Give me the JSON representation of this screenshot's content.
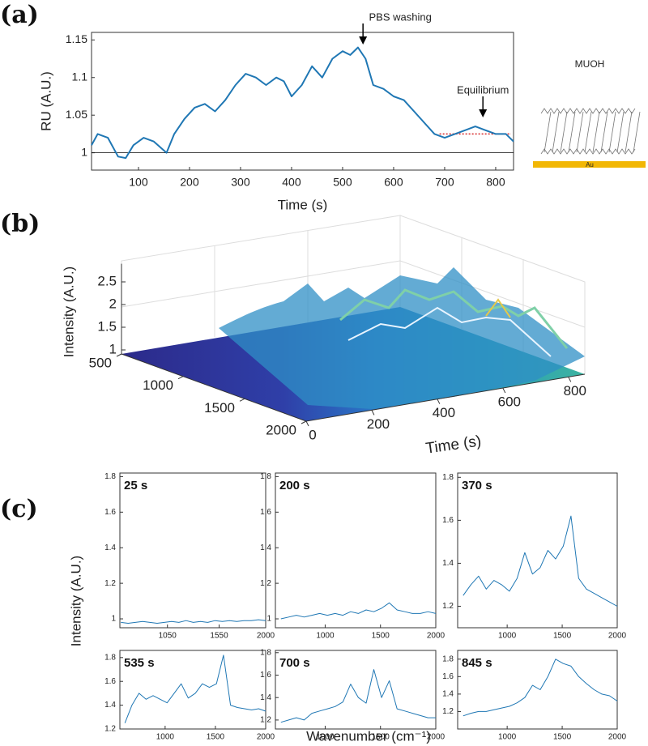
{
  "chart_data": [
    {
      "type": "line",
      "panel_label": "(a)",
      "xlabel": "Time (s)",
      "ylabel": "RU (A.U.)",
      "color": "#1f77b4",
      "x": [
        8,
        20,
        40,
        60,
        75,
        90,
        110,
        130,
        155,
        170,
        190,
        210,
        230,
        250,
        270,
        290,
        310,
        330,
        350,
        370,
        385,
        400,
        420,
        440,
        460,
        480,
        500,
        515,
        530,
        545,
        560,
        580,
        600,
        620,
        640,
        660,
        680,
        700,
        720,
        740,
        760,
        780,
        800,
        820,
        835
      ],
      "values": [
        1.01,
        1.025,
        1.02,
        0.995,
        0.993,
        1.01,
        1.02,
        1.015,
        1.0,
        1.025,
        1.045,
        1.06,
        1.065,
        1.055,
        1.07,
        1.09,
        1.105,
        1.1,
        1.09,
        1.1,
        1.095,
        1.075,
        1.09,
        1.115,
        1.1,
        1.125,
        1.135,
        1.13,
        1.14,
        1.125,
        1.09,
        1.085,
        1.075,
        1.07,
        1.055,
        1.04,
        1.025,
        1.02,
        1.025,
        1.03,
        1.035,
        1.03,
        1.025,
        1.025,
        1.015
      ],
      "xlim": [
        8,
        835
      ],
      "ylim": [
        0.977,
        1.16
      ],
      "xticks": [
        100,
        200,
        300,
        400,
        500,
        600,
        700,
        800
      ],
      "yticks": [
        1,
        1.05,
        1.1,
        1.15
      ],
      "reference_lines": [
        {
          "y": 1,
          "xrange": [
            8,
            835
          ],
          "color": "#000000",
          "style": "solid"
        },
        {
          "y": 1.025,
          "xrange": [
            690,
            830
          ],
          "color": "#d62728",
          "style": "dotted"
        }
      ],
      "annotations": [
        {
          "text": "PBS washing",
          "x": 540
        },
        {
          "text": "Equilibrium",
          "x": 775
        }
      ],
      "schematic": {
        "title": "MUOH",
        "substrate": "Au"
      }
    },
    {
      "type": "surface3d",
      "panel_label": "(b)",
      "zlabel": "Intensity (A.U.)",
      "tlabel": "Time (s)",
      "wlim": [
        500,
        2000
      ],
      "wticks": [
        500,
        1000,
        1500,
        2000
      ],
      "tlim": [
        0,
        850
      ],
      "tticks": [
        0,
        200,
        400,
        600,
        800
      ],
      "zlim": [
        0.9,
        2.9
      ],
      "zticks": [
        1,
        1.5,
        2,
        2.5
      ]
    },
    {
      "type": "multiples",
      "panel_label": "(c)",
      "ylabel": "Intensity (A.U.)",
      "xlabel": "Wavenumber (cm⁻¹)",
      "color": "#1f77b4",
      "panels": [
        {
          "title": "25 s",
          "x": [
            600,
            670,
            740,
            810,
            880,
            950,
            1020,
            1090,
            1160,
            1230,
            1300,
            1370,
            1440,
            1510,
            1580,
            1650,
            1720,
            1790,
            1860,
            1930,
            2000
          ],
          "values": [
            0.98,
            0.975,
            0.98,
            0.985,
            0.98,
            0.975,
            0.98,
            0.985,
            0.98,
            0.99,
            0.98,
            0.985,
            0.98,
            0.99,
            0.985,
            0.99,
            0.985,
            0.99,
            0.99,
            0.995,
            0.99
          ],
          "xlim": [
            590,
            2000
          ],
          "ylim": [
            0.95,
            1.82
          ],
          "xticks": [
            1050,
            1550,
            2000
          ],
          "yticks": [
            1,
            1.2,
            1.4,
            1.6,
            1.8
          ]
        },
        {
          "title": "200 s",
          "x": [
            600,
            670,
            740,
            810,
            880,
            950,
            1020,
            1090,
            1160,
            1230,
            1300,
            1370,
            1440,
            1510,
            1580,
            1650,
            1720,
            1790,
            1860,
            1930,
            2000
          ],
          "values": [
            1.0,
            1.01,
            1.02,
            1.01,
            1.02,
            1.03,
            1.02,
            1.03,
            1.02,
            1.04,
            1.03,
            1.05,
            1.04,
            1.06,
            1.09,
            1.05,
            1.04,
            1.03,
            1.03,
            1.04,
            1.03
          ],
          "xlim": [
            550,
            2000
          ],
          "ylim": [
            0.95,
            1.82
          ],
          "xticks": [
            1000,
            1500,
            2000
          ],
          "yticks": [
            1,
            1.2,
            1.4,
            1.6,
            1.8
          ]
        },
        {
          "title": "370 s",
          "x": [
            600,
            670,
            740,
            810,
            880,
            950,
            1020,
            1090,
            1160,
            1230,
            1300,
            1370,
            1440,
            1510,
            1580,
            1650,
            1720,
            1790,
            1860,
            1930,
            2000
          ],
          "values": [
            1.25,
            1.3,
            1.34,
            1.28,
            1.32,
            1.3,
            1.27,
            1.33,
            1.45,
            1.35,
            1.38,
            1.46,
            1.42,
            1.48,
            1.62,
            1.33,
            1.28,
            1.26,
            1.24,
            1.22,
            1.2
          ],
          "xlim": [
            550,
            2000
          ],
          "ylim": [
            1.1,
            1.82
          ],
          "xticks": [
            1000,
            1500,
            2000
          ],
          "yticks": [
            1.2,
            1.4,
            1.6,
            1.8
          ]
        },
        {
          "title": "535 s",
          "x": [
            600,
            670,
            740,
            810,
            880,
            950,
            1020,
            1090,
            1160,
            1230,
            1300,
            1370,
            1440,
            1510,
            1580,
            1650,
            1720,
            1790,
            1860,
            1930,
            2000
          ],
          "values": [
            1.25,
            1.4,
            1.5,
            1.45,
            1.48,
            1.45,
            1.42,
            1.5,
            1.58,
            1.46,
            1.5,
            1.58,
            1.55,
            1.58,
            1.82,
            1.4,
            1.38,
            1.37,
            1.36,
            1.37,
            1.35
          ],
          "xlim": [
            550,
            2000
          ],
          "ylim": [
            1.2,
            1.86
          ],
          "xticks": [
            1000,
            1500,
            2000
          ],
          "yticks": [
            1.2,
            1.4,
            1.6,
            1.8
          ]
        },
        {
          "title": "700 s",
          "x": [
            600,
            670,
            740,
            810,
            880,
            950,
            1020,
            1090,
            1160,
            1230,
            1300,
            1370,
            1440,
            1510,
            1580,
            1650,
            1720,
            1790,
            1860,
            1930,
            2000
          ],
          "values": [
            1.18,
            1.2,
            1.22,
            1.2,
            1.26,
            1.28,
            1.3,
            1.32,
            1.36,
            1.52,
            1.4,
            1.35,
            1.65,
            1.4,
            1.55,
            1.3,
            1.28,
            1.26,
            1.24,
            1.22,
            1.22
          ],
          "xlim": [
            550,
            2000
          ],
          "ylim": [
            1.12,
            1.82
          ],
          "xticks": [
            1000,
            1500,
            2000
          ],
          "yticks": [
            1.2,
            1.4,
            1.6,
            1.8
          ]
        },
        {
          "title": "845 s",
          "x": [
            600,
            670,
            740,
            810,
            880,
            950,
            1020,
            1090,
            1160,
            1230,
            1300,
            1370,
            1440,
            1510,
            1580,
            1650,
            1720,
            1790,
            1860,
            1930,
            2000
          ],
          "values": [
            1.15,
            1.18,
            1.2,
            1.2,
            1.22,
            1.24,
            1.26,
            1.3,
            1.36,
            1.5,
            1.45,
            1.6,
            1.8,
            1.75,
            1.72,
            1.6,
            1.52,
            1.45,
            1.4,
            1.38,
            1.32
          ],
          "xlim": [
            550,
            2000
          ],
          "ylim": [
            1.0,
            1.9
          ],
          "xticks": [
            1000,
            1500,
            2000
          ],
          "yticks": [
            1.2,
            1.4,
            1.6,
            1.8
          ]
        }
      ]
    }
  ]
}
